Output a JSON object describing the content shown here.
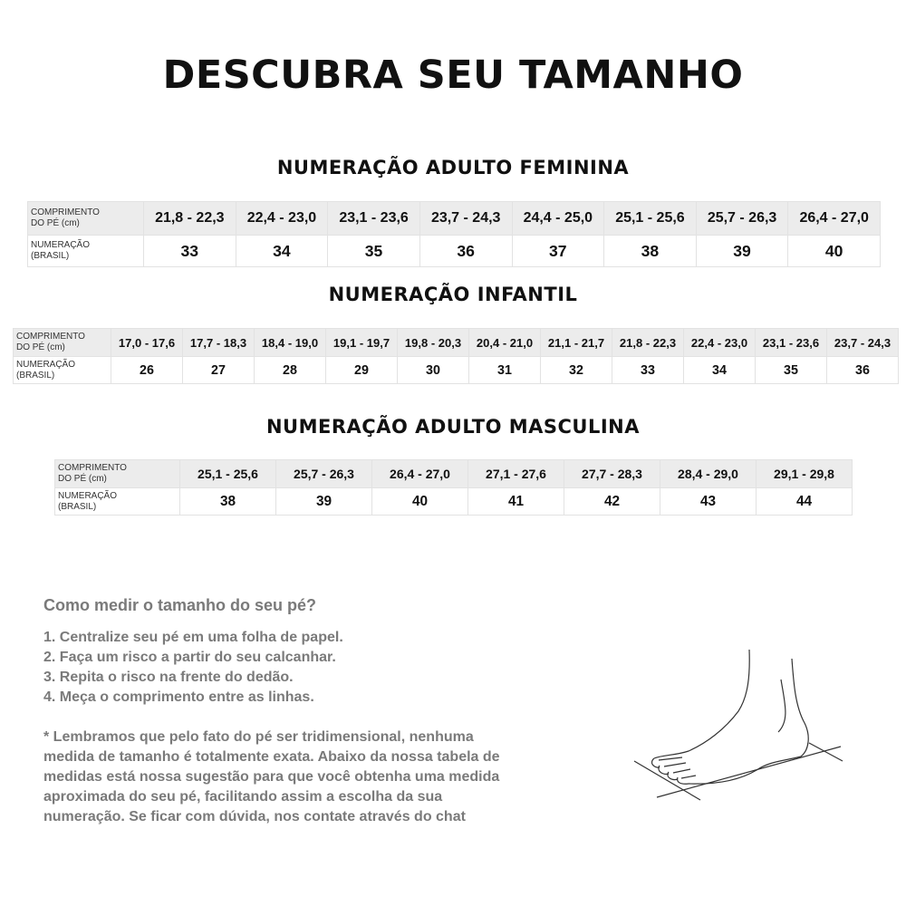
{
  "title": "DESCUBRA SEU TAMANHO",
  "row_labels": {
    "length": [
      "COMPRIMENTO",
      "DO PÉ (cm)"
    ],
    "size": [
      "NUMERAÇÃO",
      "(BRASIL)"
    ]
  },
  "feminina": {
    "title": "NUMERAÇÃO ADULTO FEMININA",
    "lengths": [
      "21,8 - 22,3",
      "22,4 - 23,0",
      "23,1 - 23,6",
      "23,7 - 24,3",
      "24,4 - 25,0",
      "25,1 - 25,6",
      "25,7 - 26,3",
      "26,4 - 27,0"
    ],
    "sizes": [
      "33",
      "34",
      "35",
      "36",
      "37",
      "38",
      "39",
      "40"
    ]
  },
  "infantil": {
    "title": "NUMERAÇÃO INFANTIL",
    "lengths": [
      "17,0 - 17,6",
      "17,7 - 18,3",
      "18,4 - 19,0",
      "19,1 - 19,7",
      "19,8 - 20,3",
      "20,4 - 21,0",
      "21,1 - 21,7",
      "21,8 - 22,3",
      "22,4 - 23,0",
      "23,1 - 23,6",
      "23,7 - 24,3"
    ],
    "sizes": [
      "26",
      "27",
      "28",
      "29",
      "30",
      "31",
      "32",
      "33",
      "34",
      "35",
      "36"
    ]
  },
  "masculina": {
    "title": "NUMERAÇÃO ADULTO MASCULINA",
    "lengths": [
      "25,1 - 25,6",
      "25,7 - 26,3",
      "26,4 - 27,0",
      "27,1 - 27,6",
      "27,7 - 28,3",
      "28,4 - 29,0",
      "29,1 - 29,8"
    ],
    "sizes": [
      "38",
      "39",
      "40",
      "41",
      "42",
      "43",
      "44"
    ]
  },
  "howto": {
    "heading": "Como medir o tamanho do seu pé?",
    "steps": [
      "1. Centralize seu pé em uma folha de papel.",
      "2. Faça um risco a partir do seu calcanhar.",
      "3. Repita o risco na frente do dedão.",
      "4. Meça o comprimento entre as linhas."
    ],
    "note": [
      "* Lembramos que pelo fato do pé ser tridimensional, nenhuma",
      "medida de tamanho é totalmente exata. Abaixo da nossa tabela de",
      "medidas está nossa sugestão para que você obtenha uma medida",
      "aproximada do seu pé, facilitando assim a escolha da sua",
      "numeração. Se ficar com dúvida, nos contate através do chat"
    ]
  }
}
